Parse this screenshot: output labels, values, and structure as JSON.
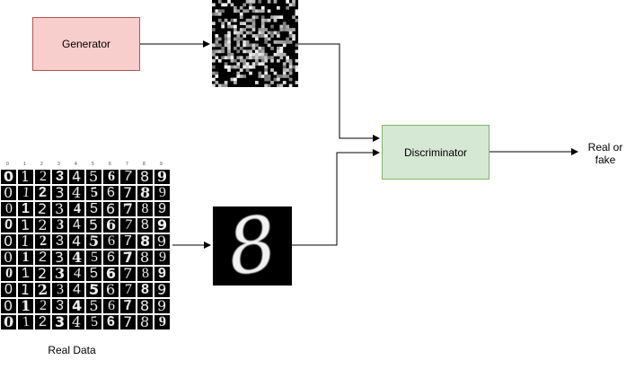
{
  "diagram": {
    "generator": {
      "label": "Generator",
      "fill": "#f8cecc",
      "stroke": "#b85450"
    },
    "discriminator": {
      "label": "Discriminator",
      "fill": "#d5e8d4",
      "stroke": "#82b366"
    },
    "output": {
      "line1": "Real or",
      "line2": "fake"
    },
    "real_data": {
      "label": "Real Data"
    },
    "real_grid": {
      "header_ticks": [
        "0",
        "1",
        "2",
        "3",
        "4",
        "5",
        "6",
        "7",
        "8",
        "9"
      ],
      "rows": 10,
      "digits": [
        "0",
        "1",
        "2",
        "3",
        "4",
        "5",
        "6",
        "7",
        "8",
        "9"
      ]
    },
    "real_sample": {
      "digit": "8"
    },
    "fake_sample": {
      "description_icon": "noise-image"
    }
  }
}
